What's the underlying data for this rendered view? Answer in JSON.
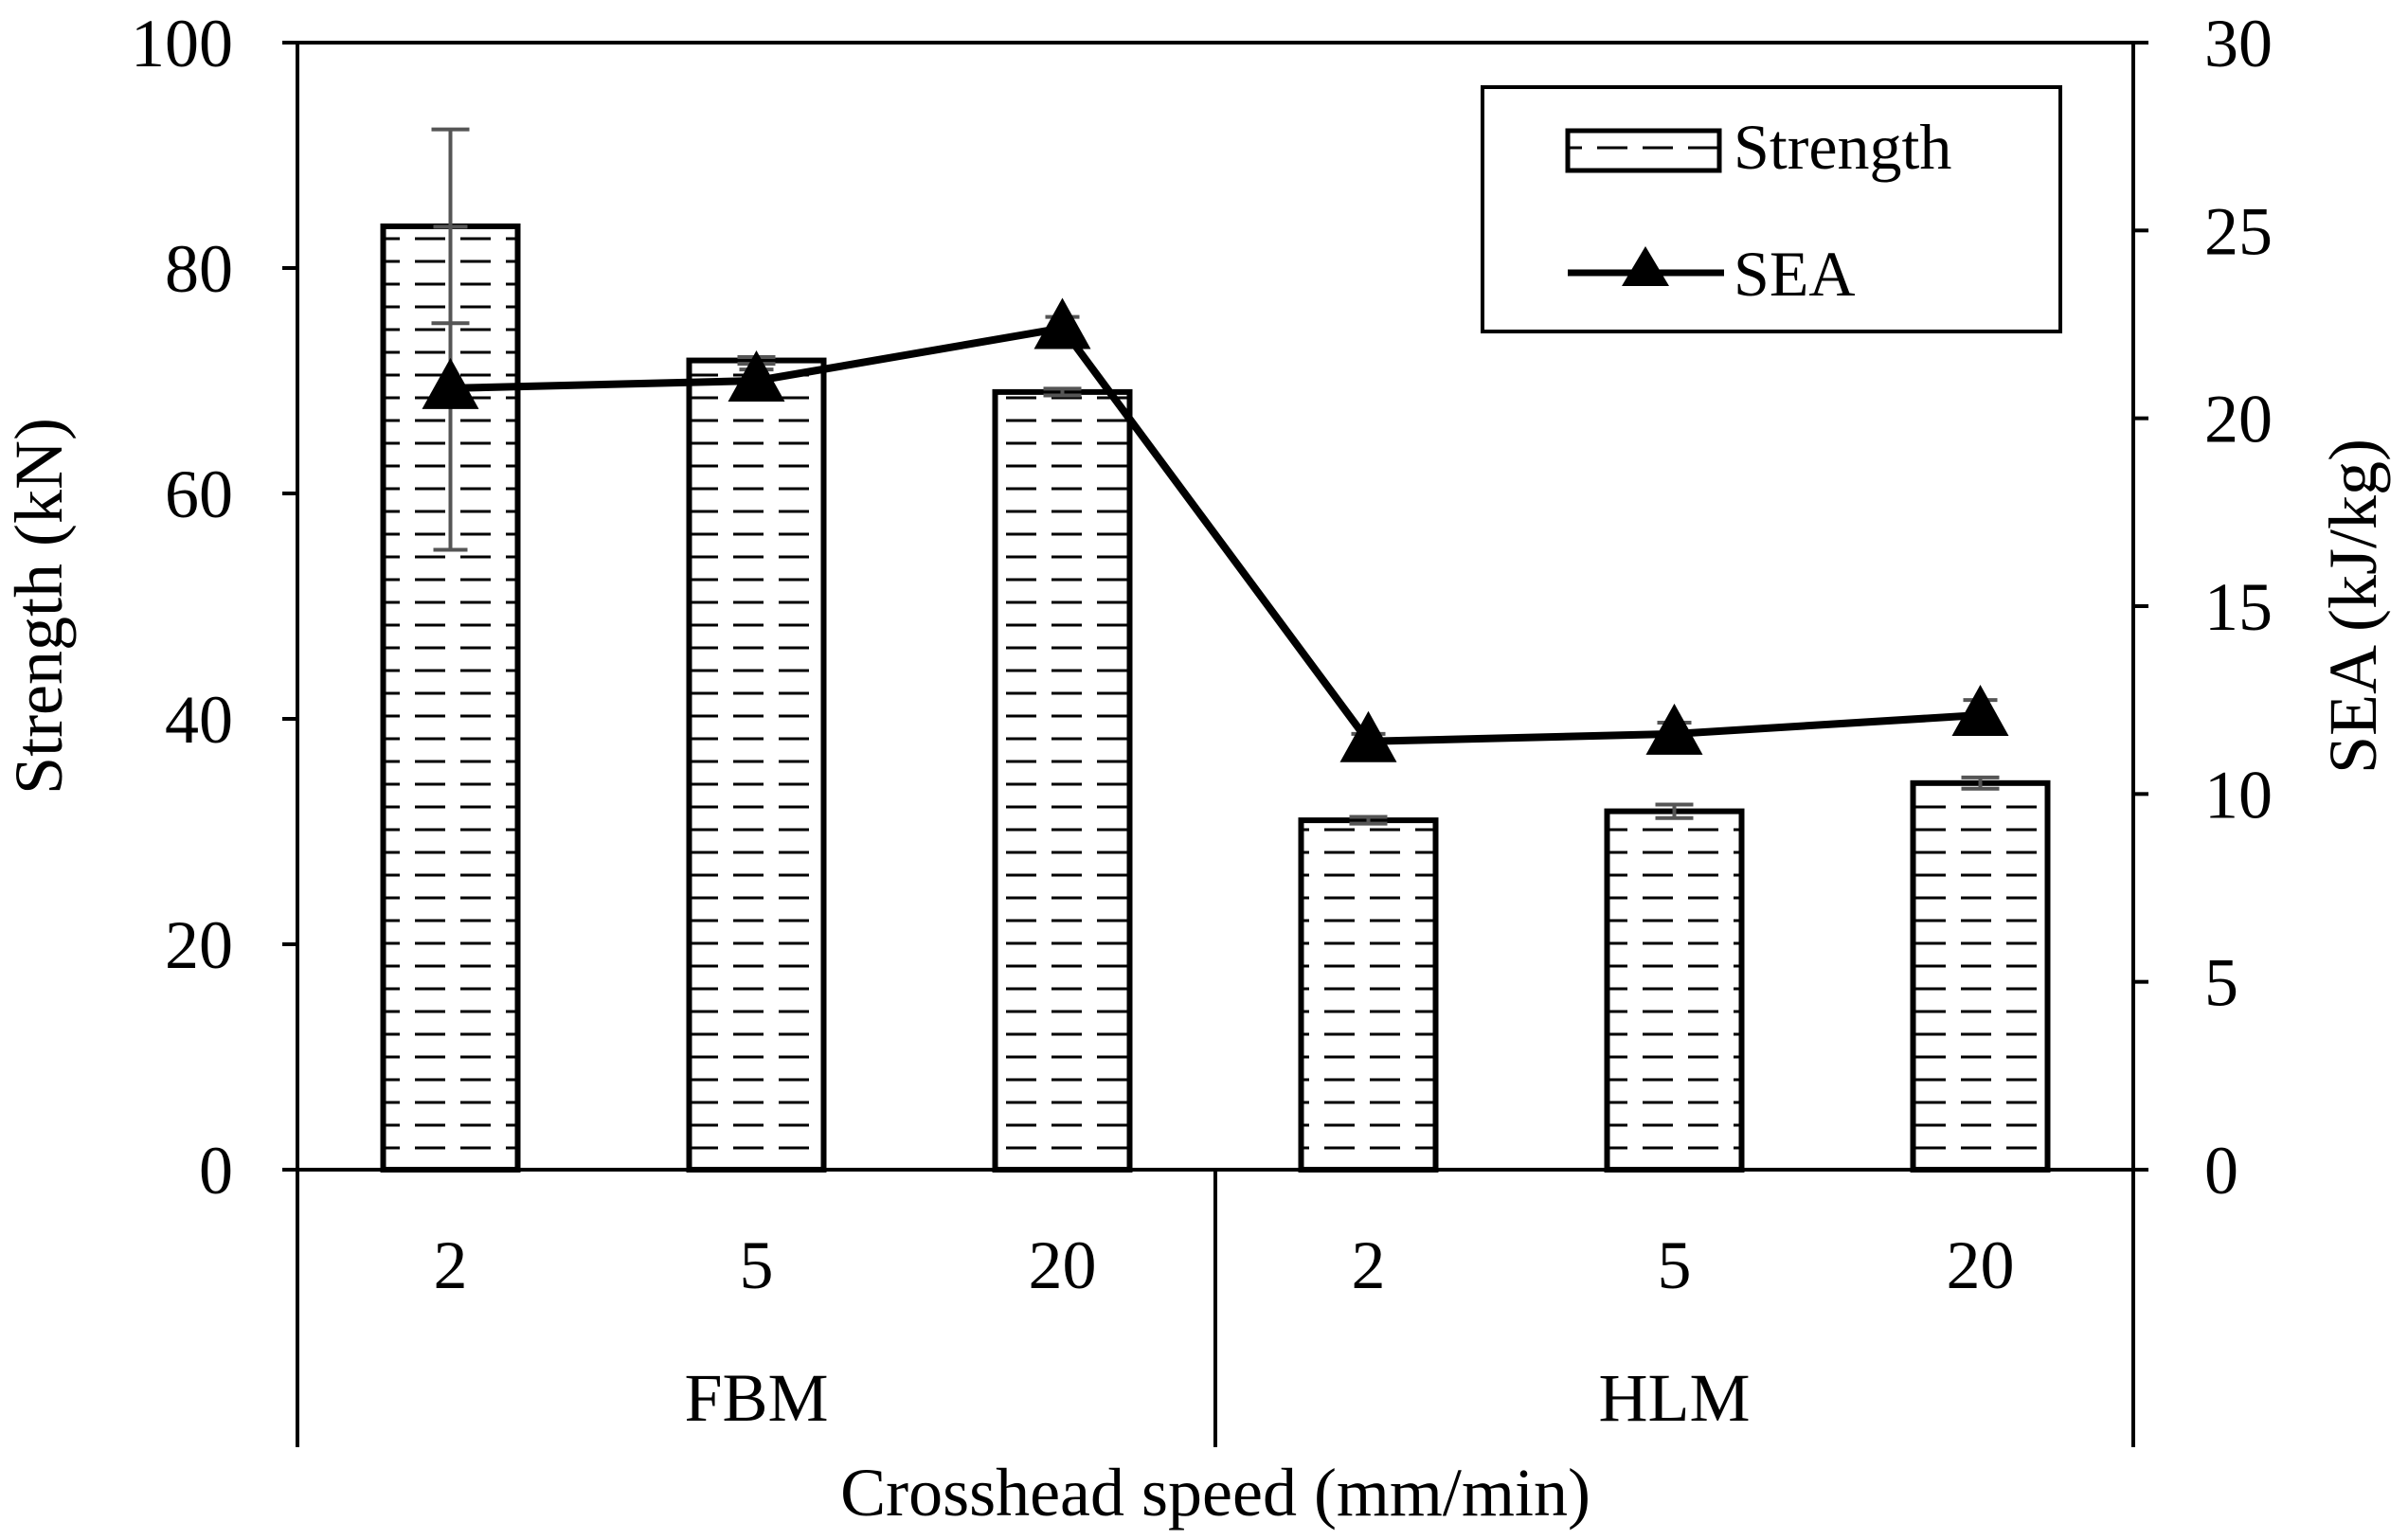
{
  "chart_data": {
    "type": "bar+line",
    "title": "",
    "xlabel": "Crosshead speed (mm/min)",
    "ylabel": "Strength (kN)",
    "y2label": "SEA (kJ/kg)",
    "ylim": [
      0,
      100
    ],
    "y2lim": [
      0,
      30
    ],
    "yticks": [
      "0",
      "20",
      "40",
      "60",
      "80",
      "100"
    ],
    "y2ticks": [
      "0",
      "5",
      "10",
      "15",
      "20",
      "25",
      "30"
    ],
    "groups": [
      {
        "name": "FBM",
        "categories": [
          "2",
          "5",
          "20"
        ]
      },
      {
        "name": "HLM",
        "categories": [
          "2",
          "5",
          "20"
        ]
      }
    ],
    "series": [
      {
        "name": "Strength",
        "kind": "bar",
        "axis": "left",
        "values": [
          83.7,
          71.8,
          69.0,
          31.0,
          31.8,
          34.3
        ],
        "error": [
          8.6,
          0.3,
          0.3,
          0.3,
          0.6,
          0.5
        ]
      },
      {
        "name": "SEA",
        "kind": "line",
        "axis": "right",
        "marker": "triangle",
        "values": [
          20.8,
          21.0,
          22.4,
          11.4,
          11.6,
          12.1
        ],
        "error": [
          4.3,
          0.3,
          0.3,
          0.2,
          0.3,
          0.4
        ]
      }
    ],
    "legend": {
      "position": "top-right",
      "entries": [
        "Strength",
        "SEA"
      ]
    },
    "colors": {
      "bar_fill": "#ffffff",
      "bar_stroke": "#000000",
      "hatch": "#000000",
      "line": "#000000",
      "error": "#555555"
    }
  }
}
